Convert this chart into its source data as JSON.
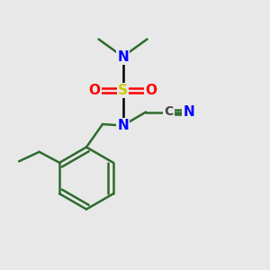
{
  "bg_color": "#e8e8e8",
  "bond_color": "#2d6b2d",
  "N_color": "#0000FF",
  "O_color": "#FF0000",
  "S_color": "#CCCC00",
  "C_color": "#444444",
  "figsize": [
    3.0,
    3.0
  ],
  "dpi": 100,
  "xlim": [
    0,
    10
  ],
  "ylim": [
    0,
    10
  ],
  "lw": 1.8,
  "fontsize": 11
}
